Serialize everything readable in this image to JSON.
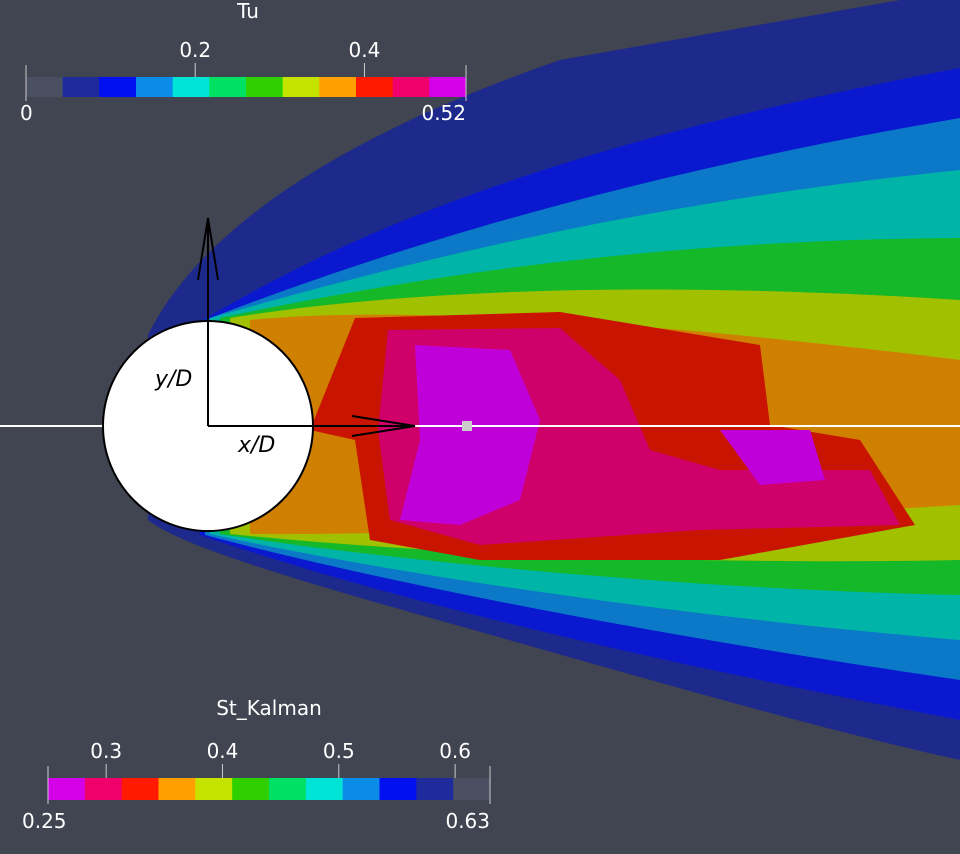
{
  "colorbars": [
    {
      "title": "Tu",
      "min": 0,
      "max": 0.52,
      "ticks": [
        0.2,
        0.4
      ],
      "colors": [
        "#4a4f62",
        "#1f2a9c",
        "#0010f0",
        "#0a8ce8",
        "#00e4d8",
        "#00e062",
        "#30d000",
        "#c4e400",
        "#ffa000",
        "#ff1a00",
        "#f0006a",
        "#d400e8"
      ]
    },
    {
      "title": "St_Kalman",
      "min": 0.25,
      "max": 0.63,
      "ticks": [
        0.3,
        0.4,
        0.5,
        0.6
      ],
      "colors": [
        "#d400e8",
        "#f0006a",
        "#ff1a00",
        "#ffa000",
        "#c4e400",
        "#30d000",
        "#00e062",
        "#00e4d8",
        "#0a8ce8",
        "#0010f0",
        "#1f2a9c",
        "#4a4f62"
      ]
    }
  ],
  "labels": {
    "y": "y/D",
    "x": "x/D"
  }
}
